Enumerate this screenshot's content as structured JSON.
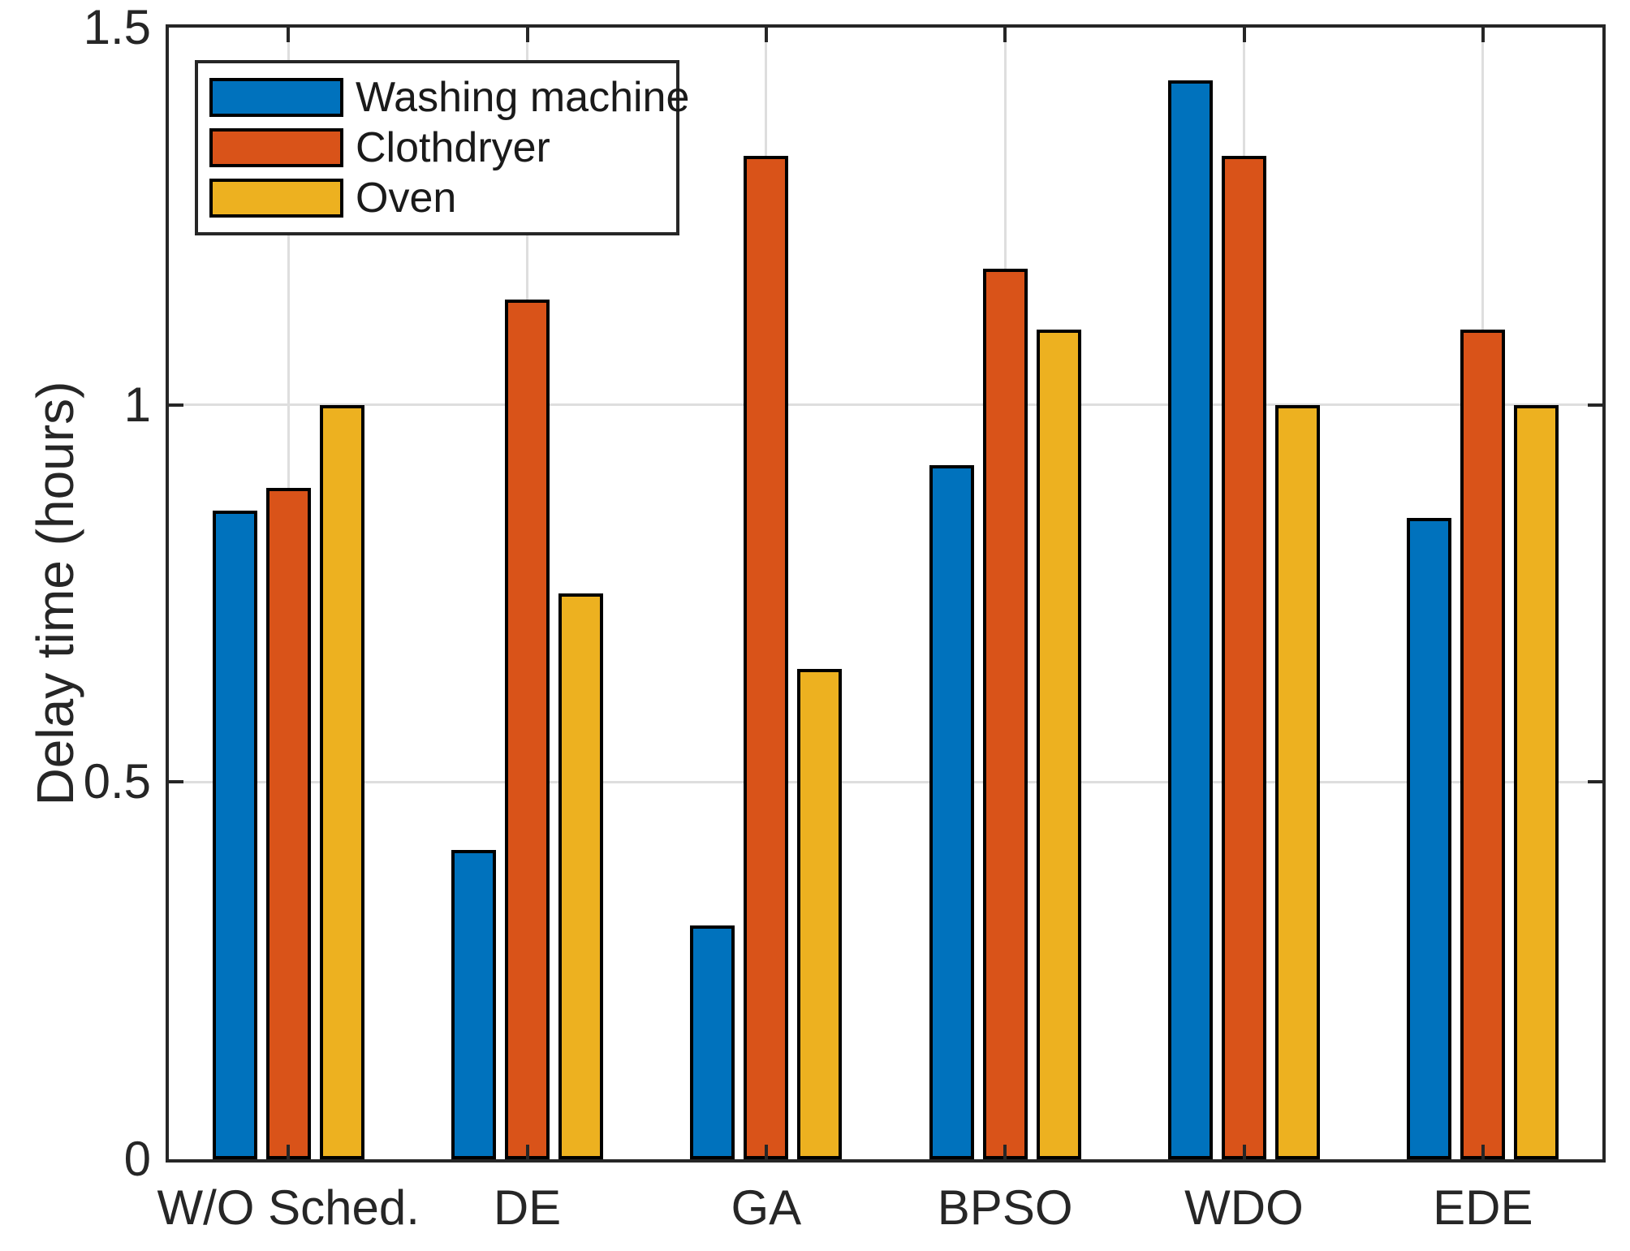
{
  "figure": {
    "background": "#ffffff",
    "axis_color": "#262626",
    "grid_color": "#dedede",
    "bar_edge_color": "#000000"
  },
  "chart_data": {
    "type": "bar",
    "title": "",
    "xlabel": "",
    "ylabel": "Delay time (hours)",
    "categories": [
      "W/O Sched.",
      "DE",
      "GA",
      "BPSO",
      "WDO",
      "EDE"
    ],
    "series": [
      {
        "name": "Washing machine",
        "color": "#0072BD",
        "values": [
          0.86,
          0.41,
          0.31,
          0.92,
          1.43,
          0.85
        ]
      },
      {
        "name": "Clothdryer",
        "color": "#D95319",
        "values": [
          0.89,
          1.14,
          1.33,
          1.18,
          1.33,
          1.1
        ]
      },
      {
        "name": "Oven",
        "color": "#EDB120",
        "values": [
          1.0,
          0.75,
          0.65,
          1.1,
          1.0,
          1.0
        ]
      }
    ],
    "ylim": [
      0,
      1.5
    ],
    "yticks": [
      0,
      0.5,
      1,
      1.5
    ],
    "ytick_labels": [
      "0",
      "0.5",
      "1",
      "1.5"
    ],
    "grid": true,
    "legend_position": "top-left"
  }
}
